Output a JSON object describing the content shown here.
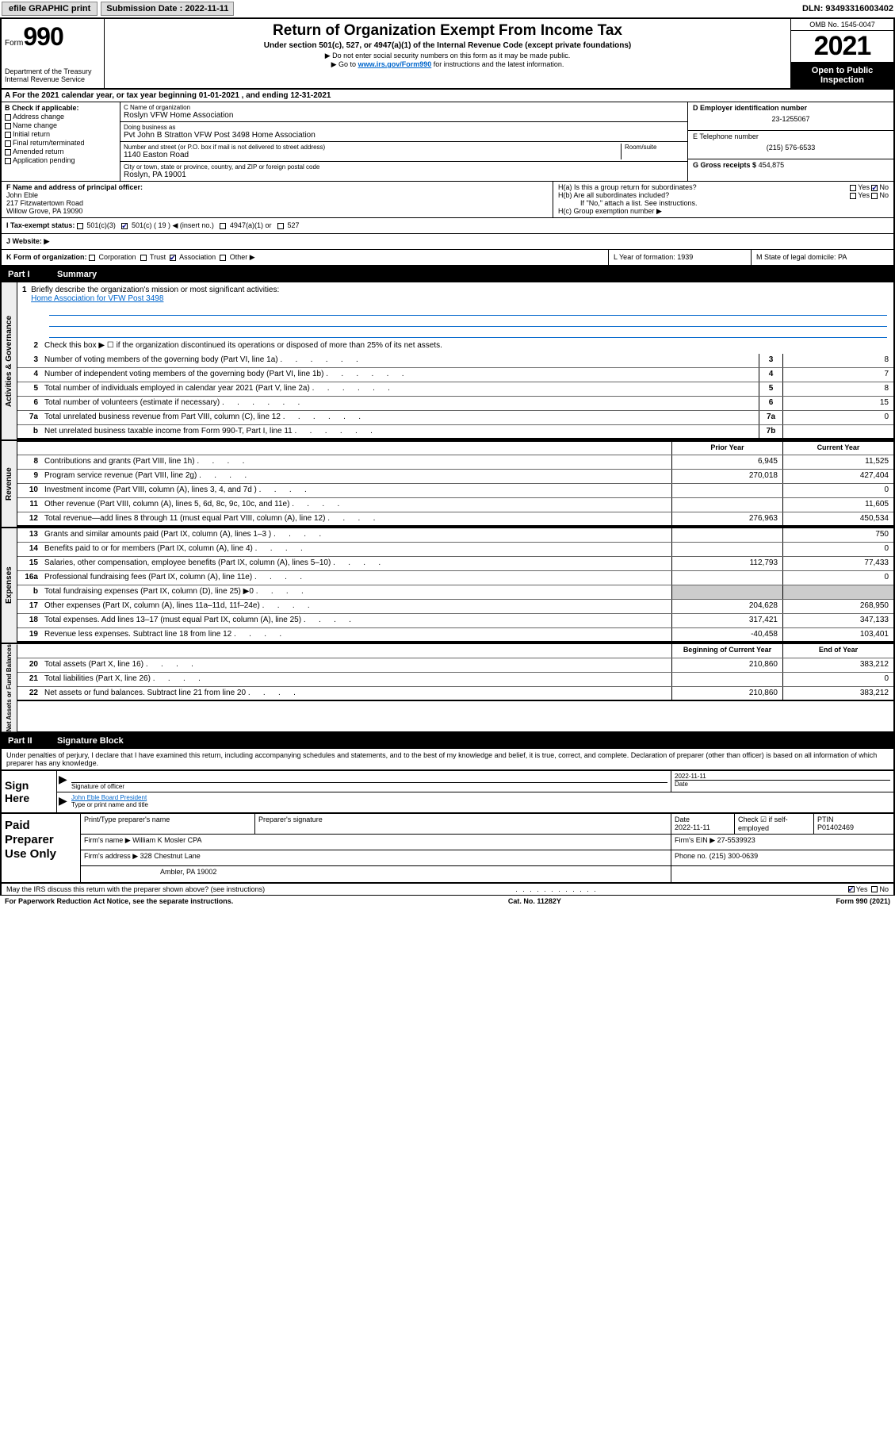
{
  "top": {
    "efile": "efile GRAPHIC print",
    "sub_label": "Submission Date :",
    "sub_date": "2022-11-11",
    "dln_label": "DLN:",
    "dln": "93493316003402"
  },
  "header": {
    "form_word": "Form",
    "form_num": "990",
    "dept": "Department of the Treasury",
    "irs": "Internal Revenue Service",
    "title": "Return of Organization Exempt From Income Tax",
    "sub1": "Under section 501(c), 527, or 4947(a)(1) of the Internal Revenue Code (except private foundations)",
    "sub2": "▶ Do not enter social security numbers on this form as it may be made public.",
    "sub3_pre": "▶ Go to ",
    "sub3_link": "www.irs.gov/Form990",
    "sub3_post": " for instructions and the latest information.",
    "omb": "OMB No. 1545-0047",
    "year": "2021",
    "open": "Open to Public Inspection"
  },
  "row_a": "A For the 2021 calendar year, or tax year beginning 01-01-2021   , and ending 12-31-2021",
  "box_b": {
    "label": "B Check if applicable:",
    "items": [
      "Address change",
      "Name change",
      "Initial return",
      "Final return/terminated",
      "Amended return",
      "Application pending"
    ]
  },
  "box_c": {
    "name_label": "C Name of organization",
    "name": "Roslyn VFW Home Association",
    "dba_label": "Doing business as",
    "dba": "Pvt John B Stratton VFW Post 3498 Home Association",
    "addr_label": "Number and street (or P.O. box if mail is not delivered to street address)",
    "room_label": "Room/suite",
    "addr": "1140 Easton Road",
    "city_label": "City or town, state or province, country, and ZIP or foreign postal code",
    "city": "Roslyn, PA  19001"
  },
  "box_d": {
    "label": "D Employer identification number",
    "value": "23-1255067"
  },
  "box_e": {
    "label": "E Telephone number",
    "value": "(215) 576-6533"
  },
  "box_g": {
    "label": "G Gross receipts $",
    "value": "454,875"
  },
  "box_f": {
    "label": "F Name and address of principal officer:",
    "name": "John Eble",
    "addr1": "217 Fitzwatertown Road",
    "addr2": "Willow Grove, PA  19090"
  },
  "box_h": {
    "ha": "H(a)  Is this a group return for subordinates?",
    "ha_yes": "Yes",
    "ha_no": "No",
    "hb": "H(b)  Are all subordinates included?",
    "hb_yes": "Yes",
    "hb_no": "No",
    "hb_note": "If \"No,\" attach a list. See instructions.",
    "hc": "H(c)  Group exemption number ▶"
  },
  "row_i": {
    "label": "I   Tax-exempt status:",
    "c3": "501(c)(3)",
    "c_other": "501(c) ( 19 ) ◀ (insert no.)",
    "c4947": "4947(a)(1) or",
    "c527": "527"
  },
  "row_j": {
    "label": "J   Website: ▶"
  },
  "row_k": {
    "label": "K Form of organization:",
    "corp": "Corporation",
    "trust": "Trust",
    "assoc": "Association",
    "other": "Other ▶",
    "l": "L Year of formation: 1939",
    "m": "M State of legal domicile: PA"
  },
  "part1": {
    "label": "Part I",
    "title": "Summary"
  },
  "summary": {
    "tab1": "Activities & Governance",
    "tab2": "Revenue",
    "tab3": "Expenses",
    "tab4": "Net Assets or Fund Balances",
    "line1_label": "Briefly describe the organization's mission or most significant activities:",
    "line1_val": "Home Association for VFW Post 3498",
    "line2": "Check this box ▶ ☐ if the organization discontinued its operations or disposed of more than 25% of its net assets.",
    "prior": "Prior Year",
    "current": "Current Year",
    "begin": "Beginning of Current Year",
    "end": "End of Year",
    "rows_a": [
      {
        "n": "3",
        "d": "Number of voting members of the governing body (Part VI, line 1a)",
        "box": "3",
        "v": "8"
      },
      {
        "n": "4",
        "d": "Number of independent voting members of the governing body (Part VI, line 1b)",
        "box": "4",
        "v": "7"
      },
      {
        "n": "5",
        "d": "Total number of individuals employed in calendar year 2021 (Part V, line 2a)",
        "box": "5",
        "v": "8"
      },
      {
        "n": "6",
        "d": "Total number of volunteers (estimate if necessary)",
        "box": "6",
        "v": "15"
      },
      {
        "n": "7a",
        "d": "Total unrelated business revenue from Part VIII, column (C), line 12",
        "box": "7a",
        "v": "0"
      },
      {
        "n": "b",
        "d": "Net unrelated business taxable income from Form 990-T, Part I, line 11",
        "box": "7b",
        "v": ""
      }
    ],
    "rows_rev": [
      {
        "n": "8",
        "d": "Contributions and grants (Part VIII, line 1h)",
        "p": "6,945",
        "c": "11,525"
      },
      {
        "n": "9",
        "d": "Program service revenue (Part VIII, line 2g)",
        "p": "270,018",
        "c": "427,404"
      },
      {
        "n": "10",
        "d": "Investment income (Part VIII, column (A), lines 3, 4, and 7d )",
        "p": "",
        "c": "0"
      },
      {
        "n": "11",
        "d": "Other revenue (Part VIII, column (A), lines 5, 6d, 8c, 9c, 10c, and 11e)",
        "p": "",
        "c": "11,605"
      },
      {
        "n": "12",
        "d": "Total revenue—add lines 8 through 11 (must equal Part VIII, column (A), line 12)",
        "p": "276,963",
        "c": "450,534"
      }
    ],
    "rows_exp": [
      {
        "n": "13",
        "d": "Grants and similar amounts paid (Part IX, column (A), lines 1–3 )",
        "p": "",
        "c": "750"
      },
      {
        "n": "14",
        "d": "Benefits paid to or for members (Part IX, column (A), line 4)",
        "p": "",
        "c": "0"
      },
      {
        "n": "15",
        "d": "Salaries, other compensation, employee benefits (Part IX, column (A), lines 5–10)",
        "p": "112,793",
        "c": "77,433"
      },
      {
        "n": "16a",
        "d": "Professional fundraising fees (Part IX, column (A), line 11e)",
        "p": "",
        "c": "0"
      },
      {
        "n": "b",
        "d": "Total fundraising expenses (Part IX, column (D), line 25) ▶0",
        "p": "shaded",
        "c": "shaded"
      },
      {
        "n": "17",
        "d": "Other expenses (Part IX, column (A), lines 11a–11d, 11f–24e)",
        "p": "204,628",
        "c": "268,950"
      },
      {
        "n": "18",
        "d": "Total expenses. Add lines 13–17 (must equal Part IX, column (A), line 25)",
        "p": "317,421",
        "c": "347,133"
      },
      {
        "n": "19",
        "d": "Revenue less expenses. Subtract line 18 from line 12",
        "p": "-40,458",
        "c": "103,401"
      }
    ],
    "rows_net": [
      {
        "n": "20",
        "d": "Total assets (Part X, line 16)",
        "p": "210,860",
        "c": "383,212"
      },
      {
        "n": "21",
        "d": "Total liabilities (Part X, line 26)",
        "p": "",
        "c": "0"
      },
      {
        "n": "22",
        "d": "Net assets or fund balances. Subtract line 21 from line 20",
        "p": "210,860",
        "c": "383,212"
      }
    ]
  },
  "part2": {
    "label": "Part II",
    "title": "Signature Block"
  },
  "sig": {
    "declare": "Under penalties of perjury, I declare that I have examined this return, including accompanying schedules and statements, and to the best of my knowledge and belief, it is true, correct, and complete. Declaration of preparer (other than officer) is based on all information of which preparer has any knowledge.",
    "sign_here": "Sign Here",
    "sig_officer": "Signature of officer",
    "date_label": "Date",
    "date_val": "2022-11-11",
    "officer_name": "John Eble  Board President",
    "type_name": "Type or print name and title"
  },
  "prep": {
    "label": "Paid Preparer Use Only",
    "h1": "Print/Type preparer's name",
    "h2": "Preparer's signature",
    "h3": "Date",
    "h3v": "2022-11-11",
    "h4": "Check ☑ if self-employed",
    "h5": "PTIN",
    "h5v": "P01402469",
    "firm_label": "Firm's name    ▶",
    "firm_name": "William K Mosler CPA",
    "ein_label": "Firm's EIN ▶",
    "ein": "27-5539923",
    "addr_label": "Firm's address ▶",
    "addr1": "328 Chestnut Lane",
    "addr2": "Ambler, PA  19002",
    "phone_label": "Phone no.",
    "phone": "(215) 300-0639"
  },
  "footer": {
    "discuss": "May the IRS discuss this return with the preparer shown above? (see instructions)",
    "yes": "Yes",
    "no": "No",
    "pra": "For Paperwork Reduction Act Notice, see the separate instructions.",
    "cat": "Cat. No. 11282Y",
    "form": "Form 990 (2021)"
  }
}
